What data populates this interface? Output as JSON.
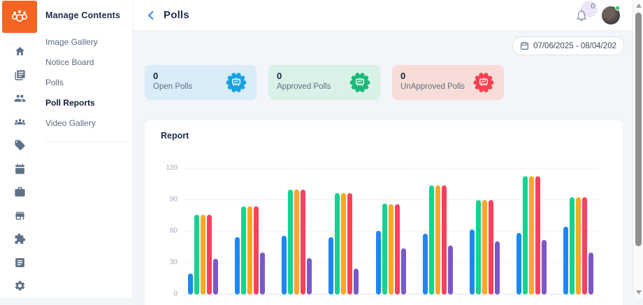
{
  "app": {
    "logo_color": "#f26522"
  },
  "icon_rail": {
    "icons": [
      "home",
      "newspaper",
      "users",
      "team",
      "tag",
      "calendar",
      "briefcase",
      "storefront",
      "puzzle",
      "news",
      "settings"
    ]
  },
  "submenu": {
    "title": "Manage Contents",
    "items": [
      {
        "label": "Image Gallery",
        "active": false
      },
      {
        "label": "Notice Board",
        "active": false
      },
      {
        "label": "Polls",
        "active": false
      },
      {
        "label": "Poll Reports",
        "active": true
      },
      {
        "label": "Video Gallery",
        "active": false
      }
    ]
  },
  "header": {
    "title": "Polls",
    "notification_count": "0",
    "accent_color": "#3b82f6"
  },
  "toolbar": {
    "date_range": "07/06/2025 - 08/04/202"
  },
  "stats": {
    "cards": [
      {
        "value": "0",
        "label": "Open Polls",
        "bg": "#d9ecf8",
        "badge": "#16a2e4"
      },
      {
        "value": "0",
        "label": "Approved Polls",
        "bg": "#d9f1e7",
        "badge": "#1cb878"
      },
      {
        "value": "0",
        "label": "UnApproved Polls",
        "bg": "#f8dcd7",
        "badge": "#f8404f"
      }
    ]
  },
  "report": {
    "title": "Report"
  },
  "chart_data": {
    "type": "bar",
    "title": "Report",
    "categories": [
      "",
      "",
      "",
      "",
      "",
      "",
      "",
      "",
      ""
    ],
    "series": [
      {
        "name": "blue",
        "color": "#1d88f2",
        "values": [
          20,
          55,
          56,
          55,
          61,
          58,
          62,
          59,
          65
        ]
      },
      {
        "name": "green",
        "color": "#14d390",
        "values": [
          76,
          84,
          100,
          97,
          87,
          104,
          90,
          113,
          93
        ]
      },
      {
        "name": "amber",
        "color": "#f9a825",
        "values": [
          76,
          84,
          100,
          97,
          86,
          104,
          90,
          113,
          93
        ]
      },
      {
        "name": "red",
        "color": "#f8415f",
        "values": [
          76,
          84,
          100,
          97,
          86,
          104,
          90,
          113,
          93
        ]
      },
      {
        "name": "purple",
        "color": "#7a58c9",
        "values": [
          34,
          40,
          35,
          25,
          44,
          47,
          51,
          52,
          40
        ]
      }
    ],
    "yticks": [
      0,
      30,
      60,
      90,
      120
    ],
    "ylim": [
      0,
      120
    ],
    "xlabel": "",
    "ylabel": "",
    "grid": true,
    "legend": "none"
  }
}
